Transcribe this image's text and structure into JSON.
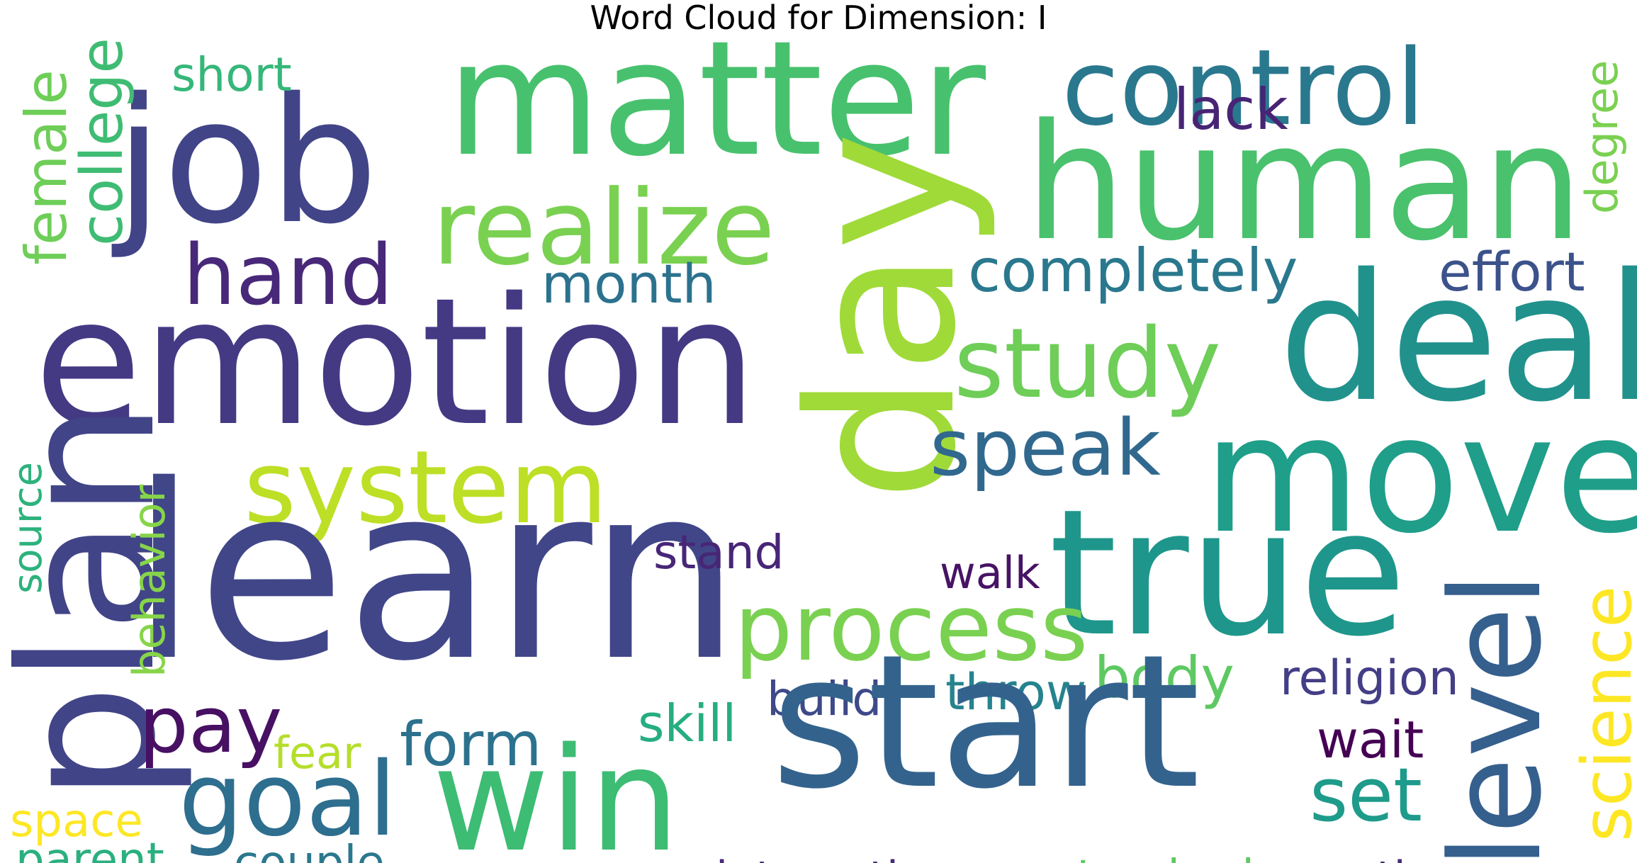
{
  "title": "Word Cloud for Dimension: I",
  "words": [
    {
      "text": "job",
      "color": "#414487"
    },
    {
      "text": "matter",
      "color": "#48c16e"
    },
    {
      "text": "control",
      "color": "#2a788e"
    },
    {
      "text": "lack",
      "color": "#482475"
    },
    {
      "text": "degree",
      "color": "#7ad151"
    },
    {
      "text": "short",
      "color": "#35b779"
    },
    {
      "text": "female",
      "color": "#6ece58"
    },
    {
      "text": "college",
      "color": "#3fbc73"
    },
    {
      "text": "human",
      "color": "#4ac16d"
    },
    {
      "text": "realize",
      "color": "#7ad151"
    },
    {
      "text": "day",
      "color": "#a0da39"
    },
    {
      "text": "hand",
      "color": "#482878"
    },
    {
      "text": "completely",
      "color": "#2a788e"
    },
    {
      "text": "effort",
      "color": "#3b528b"
    },
    {
      "text": "month",
      "color": "#2c728e"
    },
    {
      "text": "emotion",
      "color": "#443983"
    },
    {
      "text": "deal",
      "color": "#21918c"
    },
    {
      "text": "study",
      "color": "#6ece58"
    },
    {
      "text": "speak",
      "color": "#31688e"
    },
    {
      "text": "move",
      "color": "#1f9e89"
    },
    {
      "text": "system",
      "color": "#bddf26"
    },
    {
      "text": "source",
      "color": "#2db27d"
    },
    {
      "text": "plan",
      "color": "#414487"
    },
    {
      "text": "learn",
      "color": "#404688"
    },
    {
      "text": "stand",
      "color": "#482677"
    },
    {
      "text": "walk",
      "color": "#471365"
    },
    {
      "text": "true",
      "color": "#1f968b"
    },
    {
      "text": "behavior",
      "color": "#86d549"
    },
    {
      "text": "level",
      "color": "#355f8d"
    },
    {
      "text": "science",
      "color": "#fde725"
    },
    {
      "text": "process",
      "color": "#7ad151"
    },
    {
      "text": "body",
      "color": "#5ec962"
    },
    {
      "text": "religion",
      "color": "#433e85"
    },
    {
      "text": "throw",
      "color": "#25838e"
    },
    {
      "text": "build",
      "color": "#3e4989"
    },
    {
      "text": "skill",
      "color": "#26ad81"
    },
    {
      "text": "pay",
      "color": "#471063"
    },
    {
      "text": "fear",
      "color": "#b5de2b"
    },
    {
      "text": "form",
      "color": "#2c728e"
    },
    {
      "text": "wait",
      "color": "#440154"
    },
    {
      "text": "start",
      "color": "#33638d"
    },
    {
      "text": "goal",
      "color": "#2e6e8e"
    },
    {
      "text": "win",
      "color": "#3dbc74"
    },
    {
      "text": "set",
      "color": "#1e9b8a"
    },
    {
      "text": "space",
      "color": "#fde725"
    },
    {
      "text": "parent",
      "color": "#2ab07f"
    },
    {
      "text": "couple",
      "color": "#2a788e"
    },
    {
      "text": "interaction",
      "color": "#472a7a"
    },
    {
      "text": "standard",
      "color": "#5ec962"
    },
    {
      "text": "math",
      "color": "#472d7b"
    }
  ]
}
